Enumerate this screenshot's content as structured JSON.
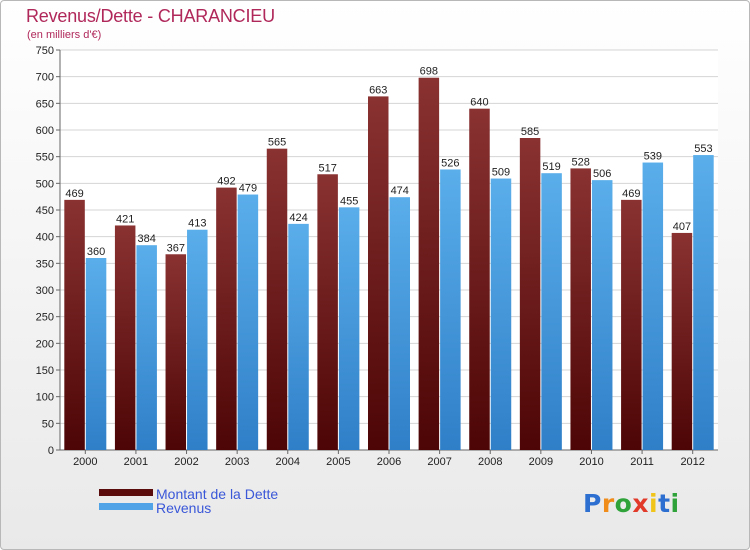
{
  "chart_data": {
    "type": "bar",
    "title": "Revenus/Dette - CHARANCIEU",
    "subtitle": "(en milliers d'€)",
    "categories": [
      "2000",
      "2001",
      "2002",
      "2003",
      "2004",
      "2005",
      "2006",
      "2007",
      "2008",
      "2009",
      "2010",
      "2011",
      "2012"
    ],
    "series": [
      {
        "name": "Montant de la Dette",
        "color": "#7a1c1c",
        "values": [
          469,
          421,
          367,
          492,
          565,
          517,
          663,
          698,
          640,
          585,
          528,
          469,
          407
        ]
      },
      {
        "name": "Revenus",
        "color": "#4fa3e6",
        "values": [
          360,
          384,
          413,
          479,
          424,
          455,
          474,
          526,
          509,
          519,
          506,
          539,
          553
        ]
      }
    ],
    "ylim": [
      0,
      750
    ],
    "ytick_step": 50,
    "grid": true,
    "legend_position": "bottom-left",
    "xlabel": "",
    "ylabel": ""
  },
  "branding": {
    "logo_letters": [
      "P",
      "r",
      "o",
      "x",
      "i",
      "t",
      "i"
    ],
    "logo_colors": [
      "#2c6fd1",
      "#f08c1a",
      "#2fa33a",
      "#e23a2a",
      "#f0c419",
      "#2c6fd1",
      "#2fa33a"
    ]
  }
}
